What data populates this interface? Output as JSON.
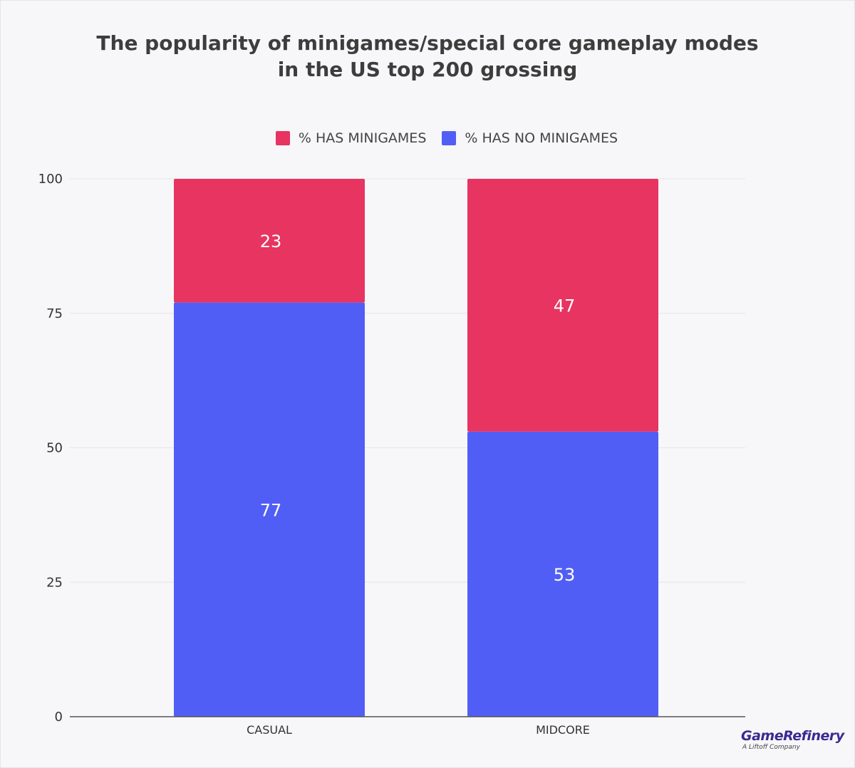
{
  "chart_data": {
    "type": "bar",
    "stacked": true,
    "title_lines": [
      "The popularity of minigames/special core gameplay modes",
      "in the US top 200 grossing"
    ],
    "xlabel": "",
    "ylabel": "",
    "categories": [
      "CASUAL",
      "MIDCORE"
    ],
    "series": [
      {
        "name": "% HAS NO MINIGAMES",
        "values": [
          77,
          53
        ],
        "color": "#515ef5"
      },
      {
        "name": "%  HAS MINIGAMES",
        "values": [
          23,
          47
        ],
        "color": "#e73461"
      }
    ],
    "legend_order": [
      1,
      0
    ],
    "ylim": [
      0,
      100
    ],
    "yticks": [
      0,
      25,
      50,
      75,
      100
    ],
    "grid": true,
    "legend_position": "top-center"
  },
  "brand": {
    "name": "GameRefinery",
    "tagline": "A Liftoff Company"
  }
}
